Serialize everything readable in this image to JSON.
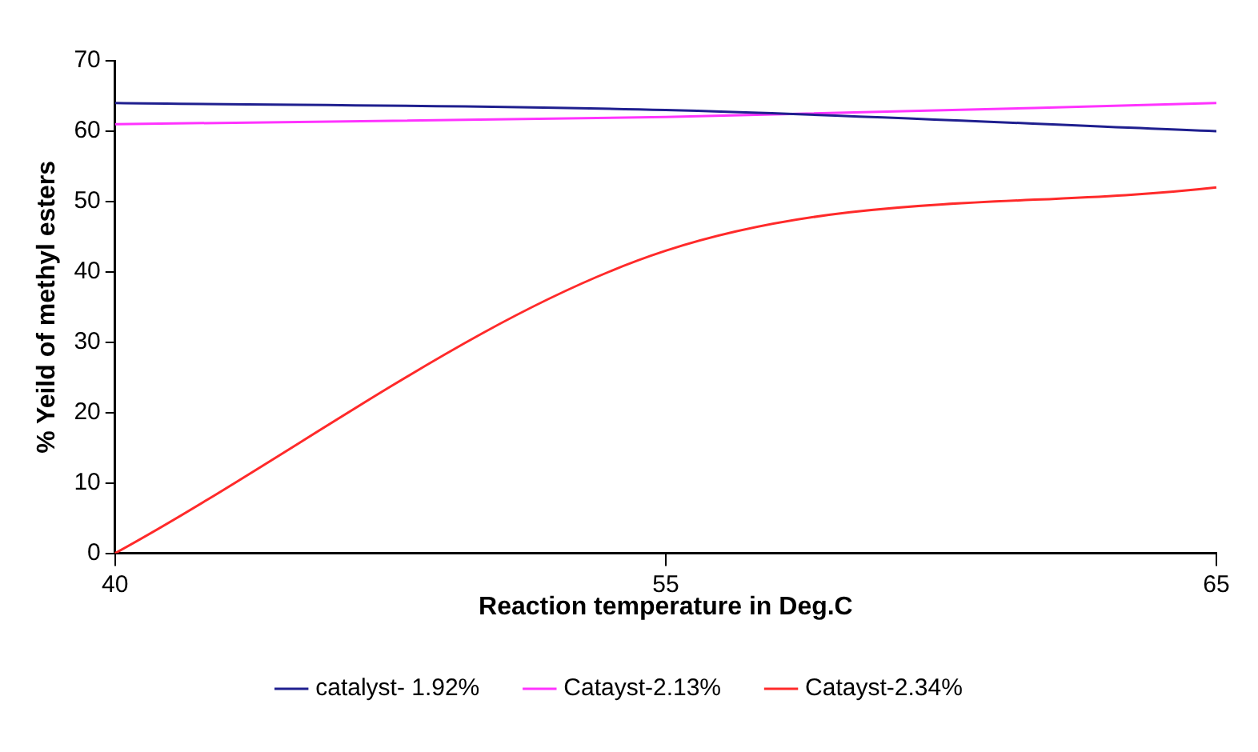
{
  "chart_data": {
    "type": "line",
    "xlabel": "Reaction temperature in Deg.C",
    "ylabel": "% Yeild of methyl esters",
    "categories": [
      "40",
      "55",
      "65"
    ],
    "series": [
      {
        "name": "catalyst- 1.92%",
        "color": "#1f1f8f",
        "values": [
          64,
          63,
          60
        ]
      },
      {
        "name": "Catayst-2.13%",
        "color": "#ff33ff",
        "values": [
          61,
          62,
          64
        ]
      },
      {
        "name": "Catayst-2.34%",
        "color": "#ff2a2a",
        "values": [
          0,
          43,
          52
        ]
      }
    ],
    "ylim": [
      0,
      70
    ],
    "yticks": [
      0,
      10,
      20,
      30,
      40,
      50,
      60,
      70
    ],
    "grid": false,
    "legend": "bottom",
    "marker": "none",
    "line_style": "solid"
  }
}
